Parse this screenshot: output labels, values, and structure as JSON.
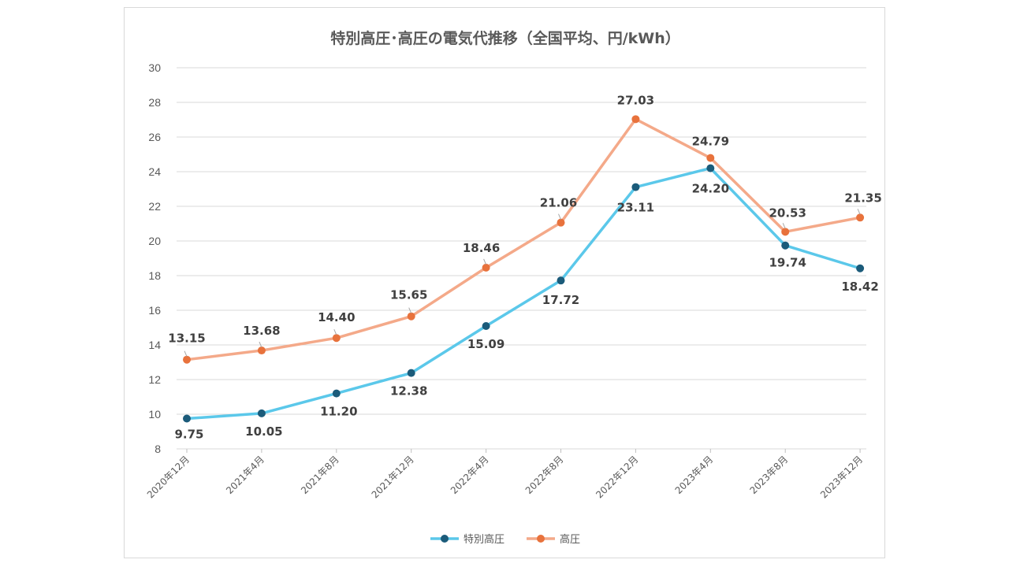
{
  "chart_data": {
    "type": "line",
    "title": "特別高圧･高圧の電気代推移（全国平均、円/kWh）",
    "xlabel": "",
    "ylabel": "",
    "ylim": [
      8,
      30
    ],
    "ytick_step": 2,
    "grid": true,
    "legend_position": "bottom",
    "categories": [
      "2020年12月",
      "2021年4月",
      "2021年8月",
      "2021年12月",
      "2022年4月",
      "2022年8月",
      "2022年12月",
      "2023年4月",
      "2023年8月",
      "2023年12月"
    ],
    "series": [
      {
        "name": "特別高圧",
        "values": [
          9.75,
          10.05,
          11.2,
          12.38,
          15.09,
          17.72,
          23.11,
          24.2,
          19.74,
          18.42
        ],
        "labels": [
          "9.75",
          "10.05",
          "11.20",
          "12.38",
          "15.09",
          "17.72",
          "23.11",
          "24.20",
          "19.74",
          "18.42"
        ],
        "line_color": "#5bc8ea",
        "marker_color": "#1b5b7a"
      },
      {
        "name": "高圧",
        "values": [
          13.15,
          13.68,
          14.4,
          15.65,
          18.46,
          21.06,
          27.03,
          24.79,
          20.53,
          21.35
        ],
        "labels": [
          "13.15",
          "13.68",
          "14.40",
          "15.65",
          "18.46",
          "21.06",
          "27.03",
          "24.79",
          "20.53",
          "21.35"
        ],
        "line_color": "#f4a989",
        "marker_color": "#e8723c"
      }
    ]
  }
}
